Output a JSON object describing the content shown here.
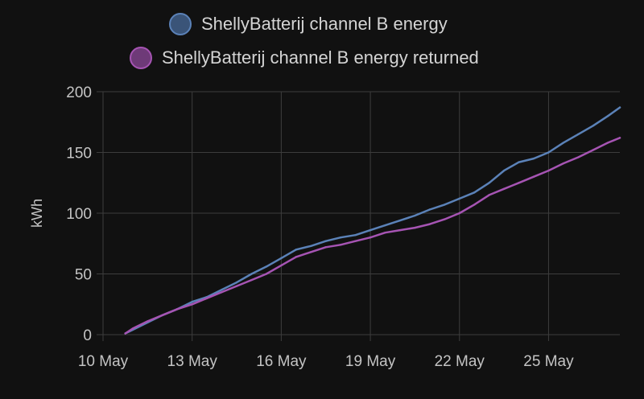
{
  "chart_data": {
    "type": "line",
    "title": "",
    "xlabel": "",
    "ylabel": "kWh",
    "ylim": [
      0,
      200
    ],
    "yticks": [
      0,
      50,
      100,
      150,
      200
    ],
    "xlim_days": [
      0,
      17.4
    ],
    "xticks": [
      {
        "day": 0,
        "label": "10 May"
      },
      {
        "day": 3,
        "label": "13 May"
      },
      {
        "day": 6,
        "label": "16 May"
      },
      {
        "day": 9,
        "label": "19 May"
      },
      {
        "day": 12,
        "label": "22 May"
      },
      {
        "day": 15,
        "label": "25 May"
      }
    ],
    "legend_position": "top",
    "series": [
      {
        "name": "ShellyBatterij channel B energy",
        "color": "#5b82b8",
        "fill": "#3a5478",
        "x": [
          0.75,
          1.0,
          1.5,
          2.0,
          2.5,
          3.0,
          3.5,
          4.0,
          4.5,
          5.0,
          5.5,
          6.0,
          6.5,
          7.0,
          7.5,
          8.0,
          8.5,
          9.0,
          9.5,
          10.0,
          10.5,
          11.0,
          11.5,
          12.0,
          12.5,
          13.0,
          13.5,
          14.0,
          14.5,
          15.0,
          15.5,
          16.0,
          16.5,
          17.0,
          17.4
        ],
        "y": [
          1,
          4,
          10,
          16,
          21,
          27,
          31,
          37,
          43,
          50,
          56,
          63,
          70,
          73,
          77,
          80,
          82,
          86,
          90,
          94,
          98,
          103,
          107,
          112,
          117,
          125,
          135,
          142,
          145,
          150,
          158,
          165,
          172,
          180,
          187
        ]
      },
      {
        "name": "ShellyBatterij channel B energy returned",
        "color": "#a654b3",
        "fill": "#6e3a78",
        "x": [
          0.75,
          1.0,
          1.5,
          2.0,
          2.5,
          3.0,
          3.5,
          4.0,
          4.5,
          5.0,
          5.5,
          6.0,
          6.5,
          7.0,
          7.5,
          8.0,
          8.5,
          9.0,
          9.5,
          10.0,
          10.5,
          11.0,
          11.5,
          12.0,
          12.5,
          13.0,
          13.5,
          14.0,
          14.5,
          15.0,
          15.5,
          16.0,
          16.5,
          17.0,
          17.4
        ],
        "y": [
          1,
          5,
          11,
          16,
          21,
          25,
          30,
          35,
          40,
          45,
          50,
          57,
          64,
          68,
          72,
          74,
          77,
          80,
          84,
          86,
          88,
          91,
          95,
          100,
          107,
          115,
          120,
          125,
          130,
          135,
          141,
          146,
          152,
          158,
          162
        ]
      }
    ]
  }
}
